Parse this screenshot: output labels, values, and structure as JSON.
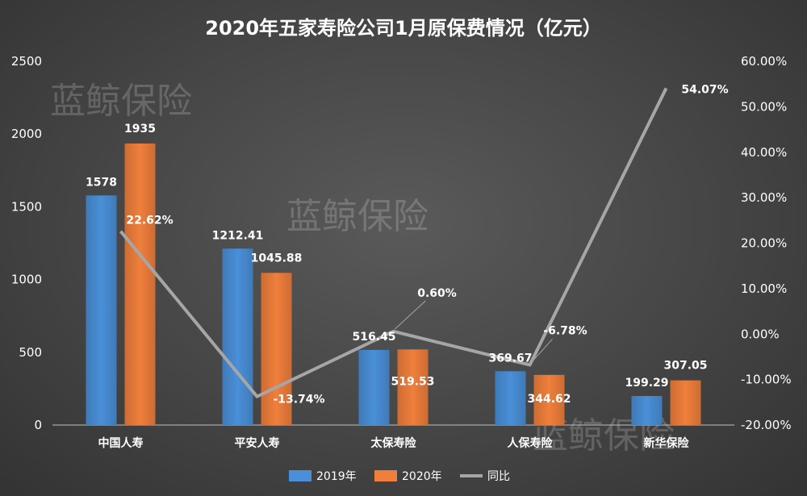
{
  "watermark": "蓝鲸保险",
  "chart_data": {
    "type": "bar",
    "title": "2020年五家寿险公司1月原保费情况（亿元）",
    "categories": [
      "中国人寿",
      "平安人寿",
      "太保寿险",
      "人保寿险",
      "新华保险"
    ],
    "series": [
      {
        "name": "2019年",
        "axis": "left",
        "values": [
          1578,
          1212.41,
          516.45,
          369.67,
          199.29
        ],
        "labels": [
          "1578",
          "1212.41",
          "516.45",
          "369.67",
          "199.29"
        ],
        "color": "#4a8fd8"
      },
      {
        "name": "2020年",
        "axis": "left",
        "values": [
          1935,
          1045.88,
          519.53,
          344.62,
          307.05
        ],
        "labels": [
          "1935",
          "1045.88",
          "519.53",
          "344.62",
          "307.05"
        ],
        "color": "#f07f3c"
      },
      {
        "name": "同比",
        "axis": "right",
        "type": "line",
        "values": [
          22.62,
          -13.74,
          0.6,
          -6.78,
          54.07
        ],
        "labels": [
          "22.62%",
          "-13.74%",
          "0.60%",
          "-6.78%",
          "54.07%"
        ],
        "color": "#a6a6a6"
      }
    ],
    "y_left": {
      "ylim": [
        0,
        2500
      ],
      "ticks": [
        "0",
        "500",
        "1000",
        "1500",
        "2000",
        "2500"
      ]
    },
    "y_right": {
      "ylim": [
        -20,
        60
      ],
      "ticks": [
        "-20.00%",
        "-10.00%",
        "0.00%",
        "10.00%",
        "20.00%",
        "30.00%",
        "40.00%",
        "50.00%",
        "60.00%"
      ]
    },
    "legend_position": "bottom",
    "grid": false
  }
}
